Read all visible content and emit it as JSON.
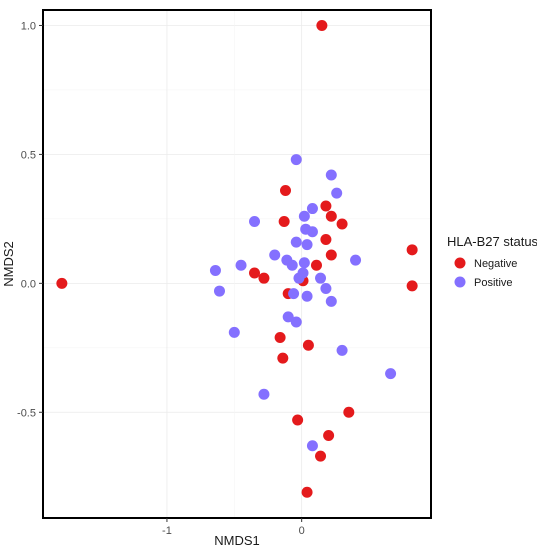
{
  "chart_data": {
    "type": "scatter",
    "title": "",
    "xlabel": "NMDS1",
    "ylabel": "NMDS2",
    "xlim": [
      -1.92,
      0.96
    ],
    "ylim": [
      -0.91,
      1.06
    ],
    "xticks": [
      -1,
      0
    ],
    "xtick_labels": [
      "-1",
      "0"
    ],
    "yticks": [
      -0.5,
      0.0,
      0.5,
      1.0
    ],
    "ytick_labels": [
      "-0.5",
      "0.0",
      "0.5",
      "1.0"
    ],
    "grid": true,
    "legend": {
      "title": "HLA-B27 status",
      "position": "right"
    },
    "series": [
      {
        "name": "Negative",
        "color": "#e41a1c",
        "points": [
          {
            "x": 0.15,
            "y": 1.0
          },
          {
            "x": -1.78,
            "y": 0.0
          },
          {
            "x": -0.12,
            "y": 0.36
          },
          {
            "x": 0.18,
            "y": 0.3
          },
          {
            "x": 0.22,
            "y": 0.26
          },
          {
            "x": -0.13,
            "y": 0.24
          },
          {
            "x": 0.3,
            "y": 0.23
          },
          {
            "x": 0.18,
            "y": 0.17
          },
          {
            "x": 0.22,
            "y": 0.11
          },
          {
            "x": 0.11,
            "y": 0.07
          },
          {
            "x": 0.82,
            "y": 0.13
          },
          {
            "x": 0.82,
            "y": -0.01
          },
          {
            "x": -0.35,
            "y": 0.04
          },
          {
            "x": -0.28,
            "y": 0.02
          },
          {
            "x": 0.01,
            "y": 0.01
          },
          {
            "x": -0.1,
            "y": -0.04
          },
          {
            "x": -0.16,
            "y": -0.21
          },
          {
            "x": 0.05,
            "y": -0.24
          },
          {
            "x": -0.14,
            "y": -0.29
          },
          {
            "x": 0.35,
            "y": -0.5
          },
          {
            "x": -0.03,
            "y": -0.53
          },
          {
            "x": 0.2,
            "y": -0.59
          },
          {
            "x": 0.14,
            "y": -0.67
          },
          {
            "x": 0.04,
            "y": -0.81
          }
        ]
      },
      {
        "name": "Positive",
        "color": "#8470ff",
        "points": [
          {
            "x": -0.04,
            "y": 0.48
          },
          {
            "x": 0.22,
            "y": 0.42
          },
          {
            "x": 0.26,
            "y": 0.35
          },
          {
            "x": 0.08,
            "y": 0.29
          },
          {
            "x": 0.02,
            "y": 0.26
          },
          {
            "x": -0.35,
            "y": 0.24
          },
          {
            "x": 0.03,
            "y": 0.21
          },
          {
            "x": 0.08,
            "y": 0.2
          },
          {
            "x": -0.04,
            "y": 0.16
          },
          {
            "x": 0.04,
            "y": 0.15
          },
          {
            "x": -0.2,
            "y": 0.11
          },
          {
            "x": -0.11,
            "y": 0.09
          },
          {
            "x": 0.4,
            "y": 0.09
          },
          {
            "x": -0.07,
            "y": 0.07
          },
          {
            "x": 0.02,
            "y": 0.08
          },
          {
            "x": -0.45,
            "y": 0.07
          },
          {
            "x": -0.64,
            "y": 0.05
          },
          {
            "x": 0.01,
            "y": 0.04
          },
          {
            "x": -0.02,
            "y": 0.02
          },
          {
            "x": 0.14,
            "y": 0.02
          },
          {
            "x": -0.61,
            "y": -0.03
          },
          {
            "x": -0.06,
            "y": -0.04
          },
          {
            "x": 0.04,
            "y": -0.05
          },
          {
            "x": 0.18,
            "y": -0.02
          },
          {
            "x": 0.22,
            "y": -0.07
          },
          {
            "x": -0.1,
            "y": -0.13
          },
          {
            "x": -0.04,
            "y": -0.15
          },
          {
            "x": -0.5,
            "y": -0.19
          },
          {
            "x": 0.3,
            "y": -0.26
          },
          {
            "x": 0.66,
            "y": -0.35
          },
          {
            "x": -0.28,
            "y": -0.43
          },
          {
            "x": 0.08,
            "y": -0.63
          }
        ]
      }
    ]
  }
}
